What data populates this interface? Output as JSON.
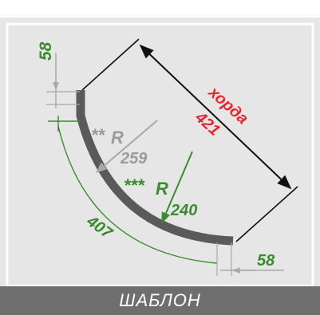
{
  "header": {
    "caption_fragment": ""
  },
  "diagram": {
    "chord_label": "хорда",
    "chord_value": "421",
    "top_offset": "58",
    "bottom_offset": "58",
    "radius_2_prefix": "**",
    "radius_2_symbol": "R",
    "radius_2_value": "259",
    "radius_3_prefix": "***",
    "radius_3_symbol": "R",
    "radius_3_value": "240",
    "arc_length": "407"
  },
  "footer": {
    "label": "ШАБЛОН"
  },
  "colors": {
    "background_panel": "#e6e6e6",
    "arc": "#5a5a5a",
    "green": "#3a8a2e",
    "red": "#e8262b",
    "grey_label": "#9a9a9a",
    "footer_bg": "#6e6e6e"
  }
}
